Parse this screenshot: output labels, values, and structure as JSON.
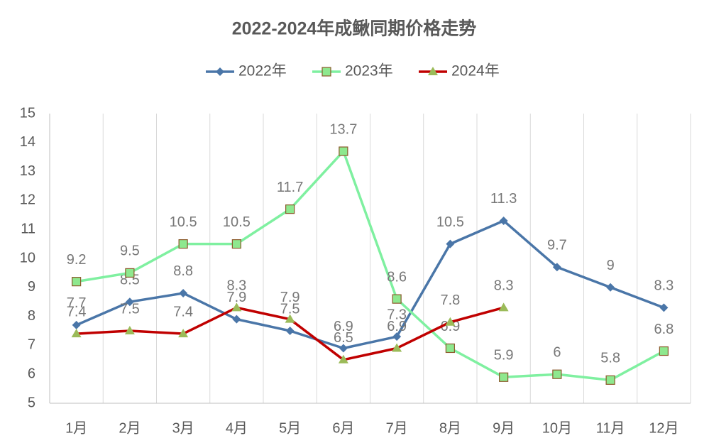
{
  "chart_data": {
    "type": "line",
    "title": "2022-2024年成鳅同期价格走势",
    "categories": [
      "1月",
      "2月",
      "3月",
      "4月",
      "5月",
      "6月",
      "7月",
      "8月",
      "9月",
      "10月",
      "11月",
      "12月"
    ],
    "series": [
      {
        "name": "2022年",
        "color": "#4a76a8",
        "marker": "diamond",
        "marker_color": "#4a76a8",
        "values": [
          7.7,
          8.5,
          8.8,
          7.9,
          7.5,
          6.9,
          7.3,
          10.5,
          11.3,
          9.7,
          9,
          8.3
        ]
      },
      {
        "name": "2023年",
        "color": "#7ff0a0",
        "marker": "square",
        "marker_color": "#8ee88e",
        "values": [
          9.2,
          9.5,
          10.5,
          10.5,
          11.7,
          13.7,
          8.6,
          6.9,
          5.9,
          6,
          5.8,
          6.8
        ]
      },
      {
        "name": "2024年",
        "color": "#c00000",
        "marker": "triangle",
        "marker_color": "#9bbb59",
        "values": [
          7.4,
          7.5,
          7.4,
          8.3,
          7.9,
          6.5,
          6.9,
          7.8,
          8.3,
          null,
          null,
          null
        ]
      }
    ],
    "ylim": [
      5,
      15
    ],
    "yticks": [
      5,
      6,
      7,
      8,
      9,
      10,
      11,
      12,
      13,
      14,
      15
    ],
    "grid": true
  }
}
